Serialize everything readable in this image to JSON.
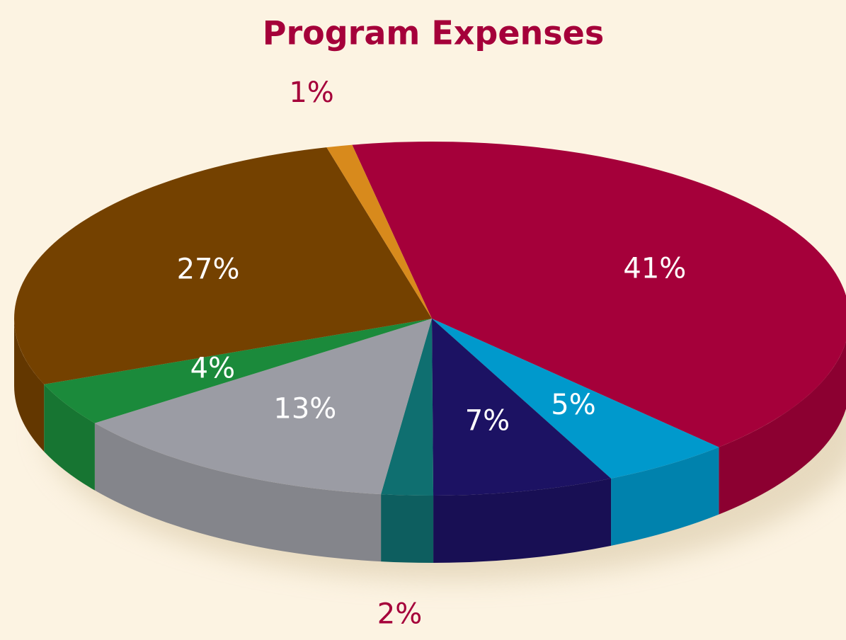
{
  "chart_data": {
    "type": "pie",
    "title": "Program Expenses",
    "values": [
      41,
      5,
      7,
      2,
      13,
      4,
      27,
      1
    ],
    "value_labels": [
      "41%",
      "5%",
      "7%",
      "2%",
      "13%",
      "4%",
      "27%",
      "1%"
    ],
    "colors": [
      "#a5003a",
      "#0099cc",
      "#1c1263",
      "#0f6f70",
      "#9b9ca4",
      "#1b8a3b",
      "#744100",
      "#d88a1c"
    ]
  }
}
